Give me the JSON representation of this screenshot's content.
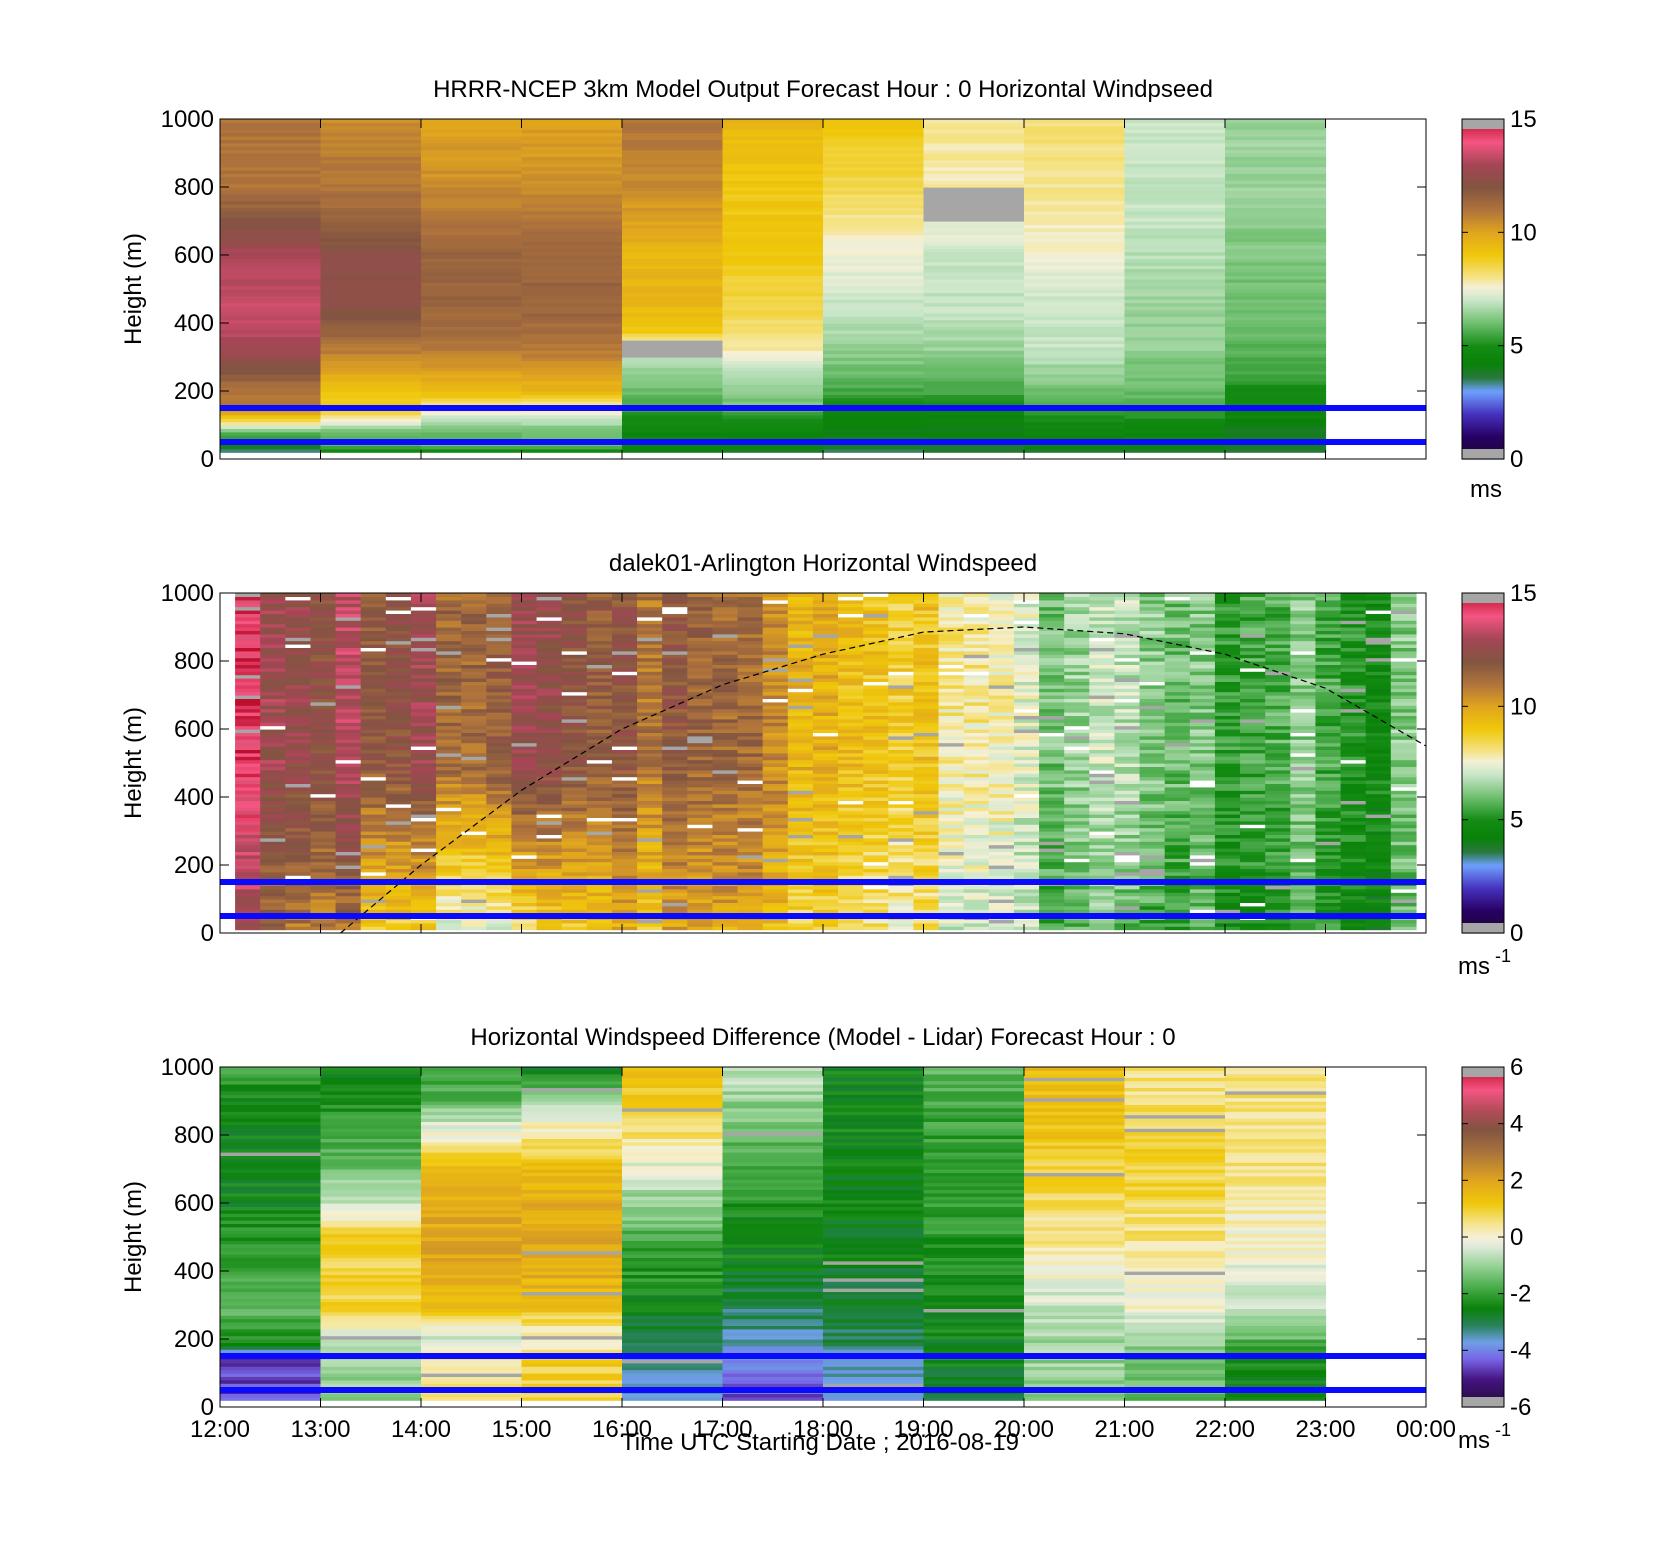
{
  "figure": {
    "xlabel": "Time UTC  Starting Date ; 2016-08-19"
  },
  "chart_data": [
    {
      "type": "heatmap",
      "title": "HRRR-NCEP 3km Model Output   Forecast Hour : 0 Horizontal Windpseed",
      "ylabel": "Height (m)",
      "xlabel": "",
      "x_ticks": [
        "12:00",
        "13:00",
        "14:00",
        "15:00",
        "16:00",
        "17:00",
        "18:00",
        "19:00",
        "20:00",
        "21:00",
        "22:00",
        "23:00",
        "00:00"
      ],
      "x_tick_labels_shown": false,
      "y_ticks": [
        "0",
        "200",
        "400",
        "600",
        "800",
        "1000"
      ],
      "ylim": [
        0,
        1000
      ],
      "xlim_hours": [
        12,
        24
      ],
      "time_bin_hours": 1,
      "colorbar": {
        "ticks": [
          "0",
          "5",
          "10",
          "15"
        ],
        "range": [
          0,
          15
        ],
        "unit": "ms",
        "unit_superscript": "",
        "palette": "speed"
      },
      "reference_lines_m": [
        150,
        50
      ],
      "reference_line_color": "#0a0aff",
      "data_columns": 11,
      "values_ms": [
        [
          [
            0,
            2
          ],
          [
            40,
            4
          ],
          [
            80,
            6
          ],
          [
            120,
            9
          ],
          [
            160,
            11
          ],
          [
            200,
            11
          ],
          [
            260,
            12
          ],
          [
            330,
            13
          ],
          [
            450,
            13.5
          ],
          [
            600,
            13
          ],
          [
            700,
            12
          ],
          [
            800,
            11
          ],
          [
            1000,
            11
          ]
        ],
        [
          [
            0,
            3
          ],
          [
            40,
            6
          ],
          [
            80,
            6
          ],
          [
            120,
            8
          ],
          [
            160,
            9
          ],
          [
            200,
            9
          ],
          [
            260,
            10
          ],
          [
            330,
            11
          ],
          [
            450,
            12.3
          ],
          [
            600,
            12.3
          ],
          [
            700,
            11.5
          ],
          [
            800,
            11
          ],
          [
            1000,
            10.5
          ]
        ],
        [
          [
            0,
            3
          ],
          [
            40,
            6
          ],
          [
            80,
            6
          ],
          [
            120,
            7
          ],
          [
            160,
            8
          ],
          [
            200,
            9.5
          ],
          [
            260,
            10
          ],
          [
            330,
            11
          ],
          [
            450,
            11.5
          ],
          [
            600,
            11.5
          ],
          [
            700,
            11
          ],
          [
            800,
            10.5
          ],
          [
            1000,
            10
          ]
        ],
        [
          [
            0,
            3
          ],
          [
            40,
            6
          ],
          [
            80,
            6
          ],
          [
            120,
            7
          ],
          [
            160,
            8
          ],
          [
            200,
            9.5
          ],
          [
            260,
            10
          ],
          [
            330,
            11
          ],
          [
            450,
            11.5
          ],
          [
            600,
            11.5
          ],
          [
            700,
            11
          ],
          [
            800,
            10.5
          ],
          [
            1000,
            10
          ]
        ],
        [
          [
            0,
            3
          ],
          [
            40,
            4.5
          ],
          [
            80,
            4.5
          ],
          [
            120,
            5
          ],
          [
            160,
            5.5
          ],
          [
            200,
            6
          ],
          [
            260,
            6.5
          ],
          [
            330,
            7.5
          ],
          [
            380,
            9
          ],
          [
            450,
            9.5
          ],
          [
            600,
            9.5
          ],
          [
            700,
            10
          ],
          [
            800,
            10.5
          ],
          [
            1000,
            11
          ]
        ],
        [
          [
            0,
            3
          ],
          [
            40,
            4.5
          ],
          [
            80,
            4.5
          ],
          [
            120,
            5
          ],
          [
            160,
            6
          ],
          [
            200,
            6.5
          ],
          [
            260,
            7
          ],
          [
            330,
            8
          ],
          [
            380,
            8.3
          ],
          [
            450,
            8.5
          ],
          [
            600,
            9
          ],
          [
            700,
            9
          ],
          [
            800,
            9
          ],
          [
            1000,
            9.5
          ]
        ],
        [
          [
            0,
            3
          ],
          [
            40,
            4
          ],
          [
            80,
            4
          ],
          [
            120,
            4.5
          ],
          [
            160,
            5
          ],
          [
            200,
            5.5
          ],
          [
            260,
            6
          ],
          [
            330,
            6.5
          ],
          [
            450,
            7
          ],
          [
            600,
            7.5
          ],
          [
            700,
            8
          ],
          [
            800,
            8.5
          ],
          [
            1000,
            9
          ]
        ],
        [
          [
            0,
            3
          ],
          [
            40,
            4
          ],
          [
            80,
            4
          ],
          [
            120,
            4.5
          ],
          [
            160,
            5
          ],
          [
            200,
            5.5
          ],
          [
            260,
            6
          ],
          [
            330,
            6.5
          ],
          [
            450,
            7
          ],
          [
            600,
            7
          ],
          [
            700,
            7.5
          ],
          [
            800,
            7.8
          ],
          [
            1000,
            8
          ]
        ],
        [
          [
            0,
            3
          ],
          [
            40,
            4.5
          ],
          [
            80,
            4.5
          ],
          [
            120,
            5
          ],
          [
            160,
            5.5
          ],
          [
            200,
            6
          ],
          [
            260,
            6.5
          ],
          [
            330,
            7
          ],
          [
            450,
            7
          ],
          [
            600,
            7.5
          ],
          [
            700,
            7.8
          ],
          [
            800,
            8
          ],
          [
            1000,
            8.2
          ]
        ],
        [
          [
            0,
            3
          ],
          [
            40,
            4.5
          ],
          [
            80,
            4.5
          ],
          [
            120,
            5
          ],
          [
            160,
            5.5
          ],
          [
            200,
            6
          ],
          [
            260,
            6
          ],
          [
            330,
            6.5
          ],
          [
            450,
            6.5
          ],
          [
            600,
            6.8
          ],
          [
            700,
            7
          ],
          [
            800,
            7
          ],
          [
            1000,
            7
          ]
        ],
        [
          [
            0,
            3
          ],
          [
            40,
            4
          ],
          [
            80,
            4
          ],
          [
            120,
            4.5
          ],
          [
            160,
            4.8
          ],
          [
            200,
            5
          ],
          [
            260,
            5.5
          ],
          [
            330,
            5.8
          ],
          [
            450,
            6
          ],
          [
            600,
            6.2
          ],
          [
            700,
            6.3
          ],
          [
            800,
            6.5
          ],
          [
            1000,
            6.5
          ]
        ]
      ],
      "missing_cells": [
        {
          "hour_index": 7,
          "from_m": 700,
          "to_m": 800
        },
        {
          "hour_index": 4,
          "from_m": 300,
          "to_m": 350
        }
      ]
    },
    {
      "type": "heatmap",
      "title": "dalek01-Arlington  Horizontal Windspeed",
      "ylabel": "Height (m)",
      "xlabel": "",
      "x_ticks": [
        "12:00",
        "13:00",
        "14:00",
        "15:00",
        "16:00",
        "17:00",
        "18:00",
        "19:00",
        "20:00",
        "21:00",
        "22:00",
        "23:00",
        "00:00"
      ],
      "x_tick_labels_shown": false,
      "y_ticks": [
        "0",
        "200",
        "400",
        "600",
        "800",
        "1000"
      ],
      "ylim": [
        0,
        1000
      ],
      "xlim_hours": [
        12,
        24
      ],
      "time_bin_hours": 0.25,
      "time_range_hours": [
        12.15,
        23.85
      ],
      "colorbar": {
        "ticks": [
          "0",
          "5",
          "10",
          "15"
        ],
        "range": [
          0,
          15
        ],
        "unit": "ms",
        "unit_superscript": "-1",
        "palette": "speed"
      },
      "reference_lines_m": [
        150,
        50
      ],
      "reference_line_color": "#0a0aff",
      "boundary_layer_curve": {
        "style": "dashed",
        "x_hours": [
          13.2,
          14,
          15,
          16,
          17,
          18,
          19,
          20,
          21,
          22,
          23,
          24
        ],
        "y_m": [
          0,
          200,
          420,
          600,
          730,
          820,
          885,
          900,
          880,
          820,
          720,
          550
        ]
      },
      "profile_by_hour": {
        "hour": [
          12,
          13,
          14,
          15,
          16,
          17,
          18,
          19,
          20,
          21,
          22,
          23,
          24
        ],
        "low_level_ms": [
          12.5,
          11.5,
          8.0,
          7.5,
          9.0,
          9.5,
          9.0,
          8.0,
          6.5,
          5.5,
          5.5,
          5.0,
          5.0
        ],
        "upper_level_ms": [
          14.0,
          13.0,
          12.0,
          12.0,
          11.5,
          11.0,
          10.0,
          9.0,
          7.0,
          6.5,
          6.0,
          5.5,
          5.5
        ]
      }
    },
    {
      "type": "heatmap",
      "title": "Horizontal Windspeed Difference (Model - Lidar) Forecast Hour : 0",
      "ylabel": "Height (m)",
      "xlabel": "Time UTC  Starting Date ; 2016-08-19",
      "x_ticks": [
        "12:00",
        "13:00",
        "14:00",
        "15:00",
        "16:00",
        "17:00",
        "18:00",
        "19:00",
        "20:00",
        "21:00",
        "22:00",
        "23:00",
        "00:00"
      ],
      "x_tick_labels_shown": true,
      "y_ticks": [
        "0",
        "200",
        "400",
        "600",
        "800",
        "1000"
      ],
      "ylim": [
        0,
        1000
      ],
      "xlim_hours": [
        12,
        24
      ],
      "time_bin_hours": 1,
      "colorbar": {
        "ticks": [
          "-6",
          "-4",
          "-2",
          "0",
          "2",
          "4",
          "6"
        ],
        "range": [
          -6,
          6
        ],
        "unit": "ms",
        "unit_superscript": "-1",
        "palette": "difference"
      },
      "reference_lines_m": [
        150,
        50
      ],
      "reference_line_color": "#0a0aff",
      "data_columns": 11,
      "values_ms": [
        [
          [
            0,
            -4.5
          ],
          [
            150,
            -4.5
          ],
          [
            180,
            -2.5
          ],
          [
            300,
            -1.5
          ],
          [
            450,
            -2
          ],
          [
            600,
            -2.5
          ],
          [
            850,
            -2.5
          ],
          [
            1000,
            -2
          ]
        ],
        [
          [
            0,
            -1
          ],
          [
            150,
            -1
          ],
          [
            200,
            -0.5
          ],
          [
            300,
            1
          ],
          [
            500,
            1
          ],
          [
            600,
            -0.5
          ],
          [
            800,
            -2
          ],
          [
            1000,
            -2.5
          ]
        ],
        [
          [
            0,
            0.5
          ],
          [
            150,
            0.5
          ],
          [
            200,
            -0.5
          ],
          [
            300,
            1.5
          ],
          [
            500,
            2
          ],
          [
            700,
            1.5
          ],
          [
            800,
            0
          ],
          [
            900,
            -1.5
          ],
          [
            1000,
            -2
          ]
        ],
        [
          [
            0,
            1
          ],
          [
            150,
            1
          ],
          [
            200,
            0
          ],
          [
            300,
            1.5
          ],
          [
            500,
            2
          ],
          [
            700,
            1.5
          ],
          [
            800,
            0.5
          ],
          [
            1000,
            -2.5
          ]
        ],
        [
          [
            0,
            -3.5
          ],
          [
            150,
            -3.5
          ],
          [
            200,
            -3
          ],
          [
            300,
            -2.5
          ],
          [
            450,
            -2
          ],
          [
            600,
            -1
          ],
          [
            800,
            0.5
          ],
          [
            1000,
            1.5
          ]
        ],
        [
          [
            0,
            -4.5
          ],
          [
            150,
            -4
          ],
          [
            200,
            -3.5
          ],
          [
            300,
            -3
          ],
          [
            450,
            -2.5
          ],
          [
            700,
            -2
          ],
          [
            900,
            -1
          ],
          [
            1000,
            -0.5
          ]
        ],
        [
          [
            0,
            -3.8
          ],
          [
            150,
            -3.5
          ],
          [
            200,
            -3
          ],
          [
            300,
            -2.8
          ],
          [
            600,
            -2.5
          ],
          [
            1000,
            -2.5
          ]
        ],
        [
          [
            0,
            -3
          ],
          [
            150,
            -2.5
          ],
          [
            300,
            -2.5
          ],
          [
            600,
            -2
          ],
          [
            800,
            -2
          ],
          [
            1000,
            -1.5
          ]
        ],
        [
          [
            0,
            -1
          ],
          [
            150,
            -1
          ],
          [
            300,
            -0.5
          ],
          [
            500,
            0.5
          ],
          [
            700,
            1
          ],
          [
            900,
            1.5
          ],
          [
            1000,
            1.5
          ]
        ],
        [
          [
            0,
            -1.5
          ],
          [
            150,
            -1.5
          ],
          [
            300,
            0
          ],
          [
            500,
            0.5
          ],
          [
            700,
            1
          ],
          [
            1000,
            0.5
          ]
        ],
        [
          [
            0,
            -2.5
          ],
          [
            150,
            -2.5
          ],
          [
            200,
            -1.5
          ],
          [
            300,
            -0.5
          ],
          [
            500,
            0
          ],
          [
            700,
            0.5
          ],
          [
            1000,
            0.5
          ]
        ]
      ]
    }
  ],
  "colors": {
    "reference_line": "#0a0aff",
    "curve": "#000000",
    "axis": "#000000",
    "missing": "#a6a6a6"
  }
}
